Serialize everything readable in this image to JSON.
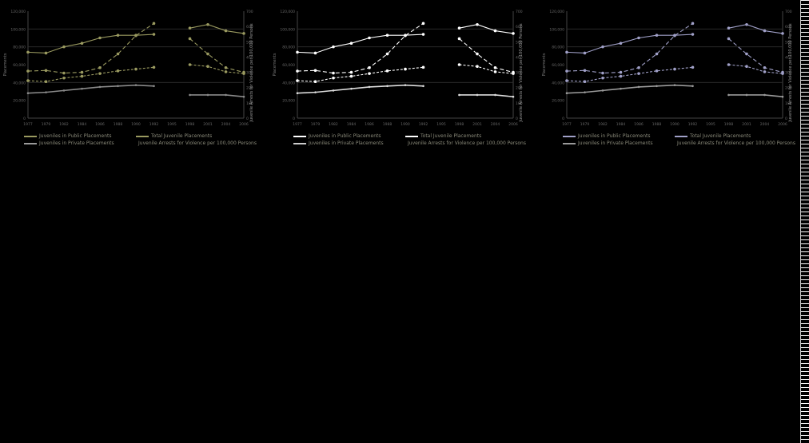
{
  "chart_data": [
    {
      "type": "line",
      "theme": {
        "left": "#9a9a60",
        "right": "#b0b0a0",
        "secondary": "#9a9a9a"
      },
      "yleft": {
        "label": "Placements",
        "ticks": [
          "0",
          "20,000",
          "40,000",
          "60,000",
          "80,000",
          "100,000",
          "120,000"
        ]
      },
      "yright": {
        "label": "Juvenile Arrests for Violence per 100,000 Persons",
        "ticks": [
          "0",
          "100",
          "200",
          "300",
          "400",
          "500",
          "600",
          "700"
        ]
      },
      "x_ticks": [
        "1977",
        "1979",
        "1982",
        "1984",
        "1986",
        "1988",
        "1990",
        "1992",
        "1995",
        "1998",
        "2001",
        "2004",
        "2006"
      ],
      "legend": [
        "Juveniles in Public Placements",
        "Total Juvenile Placements",
        "Juveniles in Private Placements",
        "Juvenile Arrests for Violence per 100,000 Persons"
      ],
      "series": [
        {
          "name": "Total Juvenile Placements",
          "color": "#9a9a60",
          "values": [
            74000,
            73000,
            80000,
            84000,
            90000,
            93000,
            93000,
            94000,
            null,
            101000,
            105000,
            98000,
            95000
          ]
        },
        {
          "name": "Juveniles in Public Placements",
          "color": "#9a9a60",
          "values": [
            42000,
            41000,
            45000,
            47000,
            50000,
            53000,
            55000,
            57000,
            null,
            60000,
            58000,
            52000,
            50000
          ]
        },
        {
          "name": "Juveniles in Private Placements",
          "color": "#8a8a8a",
          "values": [
            28000,
            29000,
            31000,
            33000,
            35000,
            36000,
            37000,
            36000,
            null,
            26000,
            26000,
            26000,
            24000
          ]
        },
        {
          "name": "Juvenile Arrests for Violence per 100,000 Persons",
          "color": "#9a9a60",
          "dashed": true,
          "values": [
            308,
            312,
            295,
            300,
            330,
            420,
            540,
            620,
            null,
            520,
            420,
            330,
            300
          ]
        }
      ]
    },
    {
      "type": "line",
      "theme": {
        "left": "#ffffff",
        "right": "#ffffff",
        "secondary": "#cccccc"
      },
      "yleft": {
        "label": "Placements",
        "ticks": [
          "0",
          "20,000",
          "40,000",
          "60,000",
          "80,000",
          "100,000",
          "120,000"
        ]
      },
      "yright": {
        "label": "Juvenile Arrests for Violence per 100,000 Persons",
        "ticks": [
          "0",
          "100",
          "200",
          "300",
          "400",
          "500",
          "600",
          "700"
        ]
      },
      "x_ticks": [
        "1977",
        "1979",
        "1982",
        "1984",
        "1986",
        "1988",
        "1990",
        "1992",
        "1995",
        "1998",
        "2001",
        "2004",
        "2006"
      ],
      "legend": [
        "Juveniles in Public Placements",
        "Total Juvenile Placements",
        "Juveniles in Private Placements",
        "Juvenile Arrests for Violence per 100,000 Persons"
      ],
      "series": [
        {
          "name": "Total Juvenile Placements",
          "color": "#ffffff",
          "values": [
            74000,
            73000,
            80000,
            84000,
            90000,
            93000,
            93000,
            94000,
            null,
            101000,
            105000,
            98000,
            95000
          ]
        },
        {
          "name": "Juveniles in Public Placements",
          "color": "#ffffff",
          "values": [
            42000,
            41000,
            45000,
            47000,
            50000,
            53000,
            55000,
            57000,
            null,
            60000,
            58000,
            52000,
            50000
          ]
        },
        {
          "name": "Juveniles in Private Placements",
          "color": "#dddddd",
          "values": [
            28000,
            29000,
            31000,
            33000,
            35000,
            36000,
            37000,
            36000,
            null,
            26000,
            26000,
            26000,
            24000
          ]
        },
        {
          "name": "Juvenile Arrests for Violence per 100,000 Persons",
          "color": "#ffffff",
          "dashed": true,
          "values": [
            308,
            312,
            295,
            300,
            330,
            420,
            540,
            620,
            null,
            520,
            420,
            330,
            300
          ]
        }
      ]
    },
    {
      "type": "line",
      "theme": {
        "left": "#a0a0c8",
        "right": "#a0a0c8",
        "secondary": "#9a9a9a"
      },
      "yleft": {
        "label": "Placements",
        "ticks": [
          "0",
          "20,000",
          "40,000",
          "60,000",
          "80,000",
          "100,000",
          "120,000"
        ]
      },
      "yright": {
        "label": "Juvenile Arrests for Violence per 100,000 Persons",
        "ticks": [
          "0",
          "100",
          "200",
          "300",
          "400",
          "500",
          "600",
          "700"
        ]
      },
      "x_ticks": [
        "1977",
        "1979",
        "1982",
        "1984",
        "1986",
        "1988",
        "1990",
        "1992",
        "1995",
        "1998",
        "2001",
        "2004",
        "2006"
      ],
      "legend": [
        "Juveniles in Public Placements",
        "Total Juvenile Placements",
        "Juveniles in Private Placements",
        "Juvenile Arrests for Violence per 100,000 Persons"
      ],
      "series": [
        {
          "name": "Total Juvenile Placements",
          "color": "#a0a0c8",
          "values": [
            74000,
            73000,
            80000,
            84000,
            90000,
            93000,
            93000,
            94000,
            null,
            101000,
            105000,
            98000,
            95000
          ]
        },
        {
          "name": "Juveniles in Public Placements",
          "color": "#a0a0c8",
          "values": [
            42000,
            41000,
            45000,
            47000,
            50000,
            53000,
            55000,
            57000,
            null,
            60000,
            58000,
            52000,
            50000
          ]
        },
        {
          "name": "Juveniles in Private Placements",
          "color": "#9a9a9a",
          "values": [
            28000,
            29000,
            31000,
            33000,
            35000,
            36000,
            37000,
            36000,
            null,
            26000,
            26000,
            26000,
            24000
          ]
        },
        {
          "name": "Juvenile Arrests for Violence per 100,000 Persons",
          "color": "#a0a0c8",
          "dashed": true,
          "values": [
            308,
            312,
            295,
            300,
            330,
            420,
            540,
            620,
            null,
            520,
            420,
            330,
            300
          ]
        }
      ]
    }
  ]
}
